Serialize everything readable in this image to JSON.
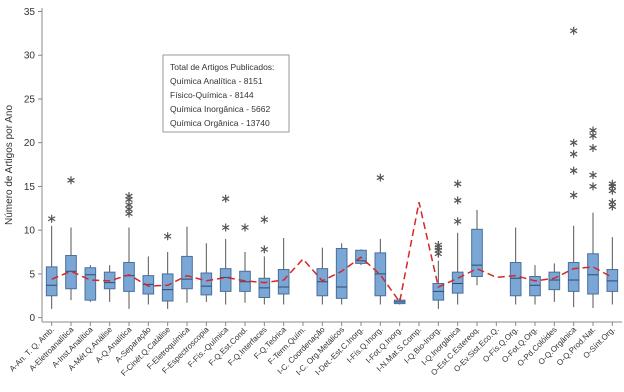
{
  "chart_data": {
    "type": "box",
    "y_label": "Número de Artigos por Ano",
    "ylim": [
      -0.5,
      35.4
    ],
    "yticks": [
      0,
      5,
      10,
      15,
      20,
      25,
      30,
      35
    ],
    "box_color": "#7ba7d7",
    "mean_color": "#d62728",
    "annotation": [
      "Total de Artigos Publicados:",
      "Química Analítica - 8151",
      "Físico-Química - 8144",
      "Química Inorgânica - 5662",
      "Química Orgânica - 13740"
    ],
    "categories": [
      "A-An. T. Q. Amb.",
      "A-Eletroanalítica",
      "A-Inst.Analítica",
      "A-Mét.Q.Análise",
      "A-Q.Analítica",
      "A-Separação",
      "F-Cinét.Q.Catálise",
      "F-Eletroquímica",
      "F-Espectroscopia",
      "F-Fís.-Química",
      "F-Q.Est.Cond.",
      "F-Q.Interfaces",
      "F-Q.Teórica",
      "F-Term.Quím.",
      "I-C. Coordenação",
      "I-C. Org.Metálicos",
      "I-Det.-Est.C.Inorg.",
      "I-Fís.Q.Inorg.",
      "I-Fot.Q.Inorg.",
      "I-N.Mat.S.Comp.",
      "I-Q.Bio-Inorg.",
      "I-Q.Inorgânica",
      "O-Est.C.Estereoq.",
      "O-Ev.Sist.Eco.Q.",
      "O-Fís.Q.Org.",
      "O-Fot.Q.Org.",
      "O-Pd.Colóides",
      "O-Q.Orgânica",
      "O-Q.Prod.Nat.",
      "O-Sínt.Org."
    ],
    "boxes": [
      {
        "min": 1,
        "q1": 2.5,
        "median": 3.7,
        "q3": 5.8,
        "max": 10.5,
        "mean": 4.4,
        "outliers": [
          11.3
        ]
      },
      {
        "min": 2,
        "q1": 3.3,
        "median": 5.3,
        "q3": 7.1,
        "max": 10.3,
        "mean": 5.3,
        "outliers": [
          15.7
        ]
      },
      {
        "min": 1.8,
        "q1": 2,
        "median": 4.9,
        "q3": 5.7,
        "max": 6,
        "mean": 4.3,
        "outliers": []
      },
      {
        "min": 1.8,
        "q1": 3.3,
        "median": 4,
        "q3": 5.2,
        "max": 6,
        "mean": 4.2,
        "outliers": []
      },
      {
        "min": 1,
        "q1": 3,
        "median": 4.8,
        "q3": 6.3,
        "max": 10.3,
        "mean": 4.9,
        "outliers": [
          11.9,
          12.4,
          12.9,
          13.5,
          13.9
        ]
      },
      {
        "min": 1.5,
        "q1": 2.7,
        "median": 3.8,
        "q3": 4.8,
        "max": 7,
        "mean": 3.6,
        "outliers": []
      },
      {
        "min": 1,
        "q1": 1.9,
        "median": 3.2,
        "q3": 5,
        "max": 7.5,
        "mean": 3.7,
        "outliers": [
          9.3
        ]
      },
      {
        "min": 1.7,
        "q1": 3.3,
        "median": 4.4,
        "q3": 7,
        "max": 10.4,
        "mean": 4.8,
        "outliers": []
      },
      {
        "min": 1.8,
        "q1": 2.6,
        "median": 3.6,
        "q3": 5.1,
        "max": 8.5,
        "mean": 4.2,
        "outliers": []
      },
      {
        "min": 1.5,
        "q1": 3,
        "median": 4.6,
        "q3": 5.6,
        "max": 9,
        "mean": 4.6,
        "outliers": [
          10.3,
          13.6
        ]
      },
      {
        "min": 1.7,
        "q1": 3,
        "median": 4.1,
        "q3": 5.3,
        "max": 7.5,
        "mean": 4.2,
        "outliers": [
          10.3
        ]
      },
      {
        "min": 1.5,
        "q1": 2.3,
        "median": 3.4,
        "q3": 4.5,
        "max": 7,
        "mean": 4,
        "outliers": [
          7.8,
          11.2
        ]
      },
      {
        "min": 1.5,
        "q1": 2.7,
        "median": 3.5,
        "q3": 5.5,
        "max": 9.1,
        "mean": 4.3,
        "outliers": []
      },
      {
        "min": null,
        "q1": null,
        "median": null,
        "q3": null,
        "max": null,
        "mean": 6.7,
        "outliers": []
      },
      {
        "min": 1.5,
        "q1": 2.5,
        "median": 4.1,
        "q3": 5.6,
        "max": 8,
        "mean": 4.2,
        "outliers": []
      },
      {
        "min": 1.5,
        "q1": 2.2,
        "median": 3.5,
        "q3": 7.9,
        "max": 8.5,
        "mean": 5.3,
        "outliers": []
      },
      {
        "min": 6,
        "q1": 6.2,
        "median": 6.5,
        "q3": 7.7,
        "max": 7.8,
        "mean": 6.9,
        "outliers": []
      },
      {
        "min": 1.5,
        "q1": 2.5,
        "median": 5,
        "q3": 7.4,
        "max": 9,
        "mean": 4.9,
        "outliers": [
          16
        ]
      },
      {
        "min": 1.5,
        "q1": 1.6,
        "median": 1.8,
        "q3": 2,
        "max": 2.2,
        "mean": 1.8,
        "outliers": []
      },
      {
        "min": null,
        "q1": null,
        "median": null,
        "q3": null,
        "max": null,
        "mean": 13.2,
        "outliers": []
      },
      {
        "min": 1,
        "q1": 2,
        "median": 3,
        "q3": 3.9,
        "max": 6.5,
        "mean": 3.5,
        "outliers": [
          7.3,
          7.7,
          8,
          8.3
        ]
      },
      {
        "min": 1.5,
        "q1": 2.8,
        "median": 3.9,
        "q3": 5.2,
        "max": 9.7,
        "mean": 4.5,
        "outliers": [
          11,
          13.4,
          15.3
        ]
      },
      {
        "min": 3.7,
        "q1": 4.7,
        "median": 6,
        "q3": 10.1,
        "max": 12.3,
        "mean": 5.6,
        "outliers": []
      },
      {
        "min": null,
        "q1": null,
        "median": null,
        "q3": null,
        "max": null,
        "mean": 4.6,
        "outliers": []
      },
      {
        "min": 1.5,
        "q1": 2.5,
        "median": 4.5,
        "q3": 6.3,
        "max": 10.3,
        "mean": 4.8,
        "outliers": []
      },
      {
        "min": 1.5,
        "q1": 2.5,
        "median": 3.7,
        "q3": 4.7,
        "max": 6,
        "mean": 4.2,
        "outliers": []
      },
      {
        "min": 1.8,
        "q1": 3.2,
        "median": 4.3,
        "q3": 5.2,
        "max": 6.2,
        "mean": 4.5,
        "outliers": []
      },
      {
        "min": 1.2,
        "q1": 3,
        "median": 4.3,
        "q3": 6.3,
        "max": 10.5,
        "mean": 5.6,
        "outliers": [
          14,
          16.8,
          18.7,
          20,
          32.8
        ]
      },
      {
        "min": 1.1,
        "q1": 2.7,
        "median": 4.9,
        "q3": 7.3,
        "max": 12,
        "mean": 5.8,
        "outliers": [
          15,
          16.3,
          19.4,
          20.8,
          21.4
        ]
      },
      {
        "min": 1.5,
        "q1": 3,
        "median": 4.2,
        "q3": 5.5,
        "max": 9.2,
        "mean": 4.6,
        "outliers": [
          12.7,
          13.2,
          14.5,
          15,
          15.3
        ]
      }
    ]
  }
}
